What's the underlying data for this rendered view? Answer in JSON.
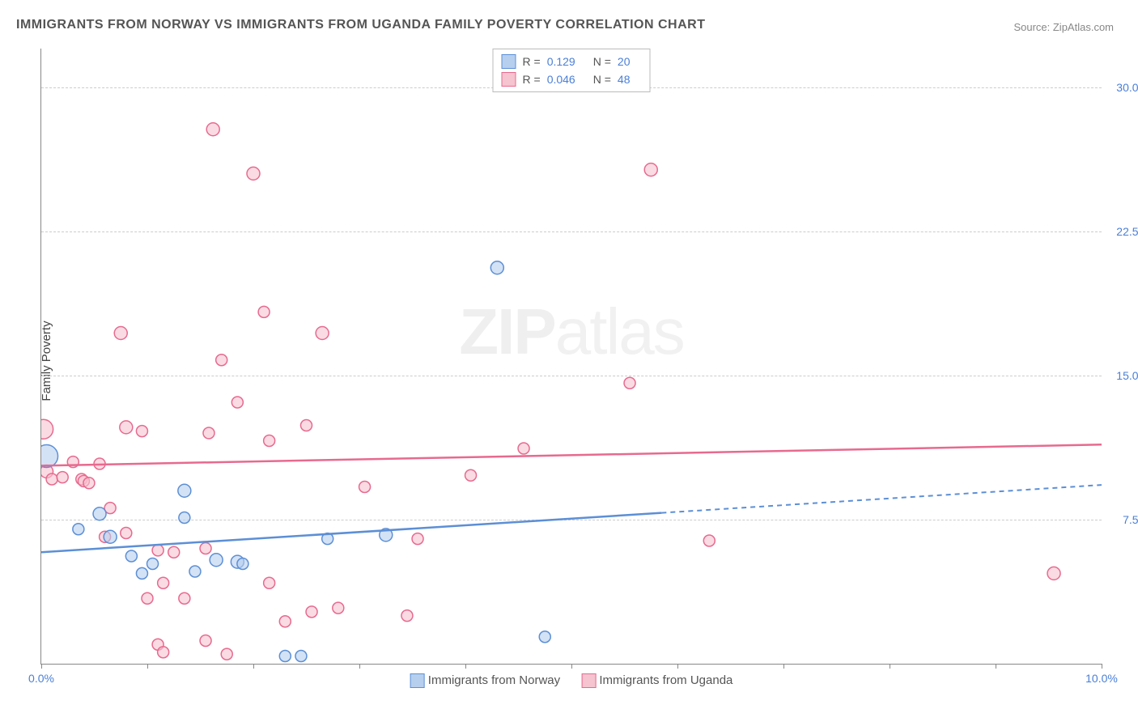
{
  "title": "IMMIGRANTS FROM NORWAY VS IMMIGRANTS FROM UGANDA FAMILY POVERTY CORRELATION CHART",
  "source": "Source: ZipAtlas.com",
  "ylabel": "Family Poverty",
  "watermark_a": "ZIP",
  "watermark_b": "atlas",
  "chart": {
    "type": "scatter",
    "xlim": [
      0,
      10
    ],
    "ylim": [
      0,
      32
    ],
    "x_ticks": [
      0,
      1,
      2,
      3,
      4,
      5,
      6,
      7,
      8,
      9,
      10
    ],
    "x_tick_labels": [
      "0.0%",
      "",
      "",
      "",
      "",
      "",
      "",
      "",
      "",
      "",
      "10.0%"
    ],
    "y_gridlines": [
      7.5,
      15.0,
      22.5,
      30.0
    ],
    "y_tick_labels": [
      "7.5%",
      "15.0%",
      "22.5%",
      "30.0%"
    ],
    "background_color": "#ffffff",
    "grid_color": "#cccccc",
    "axis_color": "#888888",
    "label_color": "#4a7fd6",
    "series": [
      {
        "name": "Immigrants from Norway",
        "color_fill": "#b6cfee",
        "color_stroke": "#5c8fd6",
        "R": "0.129",
        "N": "20",
        "trend": {
          "y_at_x0": 5.8,
          "y_at_x10": 9.3,
          "solid_until_x": 5.85
        },
        "points": [
          {
            "x": 0.05,
            "y": 10.8,
            "r": 14
          },
          {
            "x": 0.35,
            "y": 7.0,
            "r": 7
          },
          {
            "x": 0.55,
            "y": 7.8,
            "r": 8
          },
          {
            "x": 0.65,
            "y": 6.6,
            "r": 8
          },
          {
            "x": 0.85,
            "y": 5.6,
            "r": 7
          },
          {
            "x": 0.95,
            "y": 4.7,
            "r": 7
          },
          {
            "x": 1.05,
            "y": 5.2,
            "r": 7
          },
          {
            "x": 1.35,
            "y": 9.0,
            "r": 8
          },
          {
            "x": 1.35,
            "y": 7.6,
            "r": 7
          },
          {
            "x": 1.45,
            "y": 4.8,
            "r": 7
          },
          {
            "x": 1.65,
            "y": 5.4,
            "r": 8
          },
          {
            "x": 1.85,
            "y": 5.3,
            "r": 8
          },
          {
            "x": 1.9,
            "y": 5.2,
            "r": 7
          },
          {
            "x": 2.3,
            "y": 0.4,
            "r": 7
          },
          {
            "x": 2.45,
            "y": 0.4,
            "r": 7
          },
          {
            "x": 2.7,
            "y": 6.5,
            "r": 7
          },
          {
            "x": 3.25,
            "y": 6.7,
            "r": 8
          },
          {
            "x": 4.3,
            "y": 20.6,
            "r": 8
          },
          {
            "x": 4.75,
            "y": 1.4,
            "r": 7
          }
        ]
      },
      {
        "name": "Immigrants from Uganda",
        "color_fill": "#f6c3d0",
        "color_stroke": "#e76a8f",
        "R": "0.046",
        "N": "48",
        "trend": {
          "y_at_x0": 10.3,
          "y_at_x10": 11.4,
          "solid_until_x": 10
        },
        "points": [
          {
            "x": 0.02,
            "y": 12.2,
            "r": 12
          },
          {
            "x": 0.05,
            "y": 10.0,
            "r": 8
          },
          {
            "x": 0.1,
            "y": 9.6,
            "r": 7
          },
          {
            "x": 0.2,
            "y": 9.7,
            "r": 7
          },
          {
            "x": 0.3,
            "y": 10.5,
            "r": 7
          },
          {
            "x": 0.38,
            "y": 9.6,
            "r": 7
          },
          {
            "x": 0.4,
            "y": 9.5,
            "r": 7
          },
          {
            "x": 0.45,
            "y": 9.4,
            "r": 7
          },
          {
            "x": 0.55,
            "y": 10.4,
            "r": 7
          },
          {
            "x": 0.6,
            "y": 6.6,
            "r": 7
          },
          {
            "x": 0.65,
            "y": 8.1,
            "r": 7
          },
          {
            "x": 0.75,
            "y": 17.2,
            "r": 8
          },
          {
            "x": 0.8,
            "y": 6.8,
            "r": 7
          },
          {
            "x": 0.8,
            "y": 12.3,
            "r": 8
          },
          {
            "x": 0.95,
            "y": 12.1,
            "r": 7
          },
          {
            "x": 1.0,
            "y": 3.4,
            "r": 7
          },
          {
            "x": 1.1,
            "y": 5.9,
            "r": 7
          },
          {
            "x": 1.1,
            "y": 1.0,
            "r": 7
          },
          {
            "x": 1.15,
            "y": 0.6,
            "r": 7
          },
          {
            "x": 1.15,
            "y": 4.2,
            "r": 7
          },
          {
            "x": 1.25,
            "y": 5.8,
            "r": 7
          },
          {
            "x": 1.35,
            "y": 3.4,
            "r": 7
          },
          {
            "x": 1.55,
            "y": 1.2,
            "r": 7
          },
          {
            "x": 1.55,
            "y": 6.0,
            "r": 7
          },
          {
            "x": 1.58,
            "y": 12.0,
            "r": 7
          },
          {
            "x": 1.62,
            "y": 27.8,
            "r": 8
          },
          {
            "x": 1.7,
            "y": 15.8,
            "r": 7
          },
          {
            "x": 1.75,
            "y": 0.5,
            "r": 7
          },
          {
            "x": 1.85,
            "y": 13.6,
            "r": 7
          },
          {
            "x": 2.0,
            "y": 25.5,
            "r": 8
          },
          {
            "x": 2.1,
            "y": 18.3,
            "r": 7
          },
          {
            "x": 2.15,
            "y": 11.6,
            "r": 7
          },
          {
            "x": 2.15,
            "y": 4.2,
            "r": 7
          },
          {
            "x": 2.3,
            "y": 2.2,
            "r": 7
          },
          {
            "x": 2.5,
            "y": 12.4,
            "r": 7
          },
          {
            "x": 2.55,
            "y": 2.7,
            "r": 7
          },
          {
            "x": 2.65,
            "y": 17.2,
            "r": 8
          },
          {
            "x": 2.8,
            "y": 2.9,
            "r": 7
          },
          {
            "x": 3.05,
            "y": 9.2,
            "r": 7
          },
          {
            "x": 3.45,
            "y": 2.5,
            "r": 7
          },
          {
            "x": 3.55,
            "y": 6.5,
            "r": 7
          },
          {
            "x": 4.05,
            "y": 9.8,
            "r": 7
          },
          {
            "x": 4.55,
            "y": 11.2,
            "r": 7
          },
          {
            "x": 5.55,
            "y": 14.6,
            "r": 7
          },
          {
            "x": 5.75,
            "y": 25.7,
            "r": 8
          },
          {
            "x": 6.3,
            "y": 6.4,
            "r": 7
          },
          {
            "x": 9.55,
            "y": 4.7,
            "r": 8
          }
        ]
      }
    ]
  }
}
